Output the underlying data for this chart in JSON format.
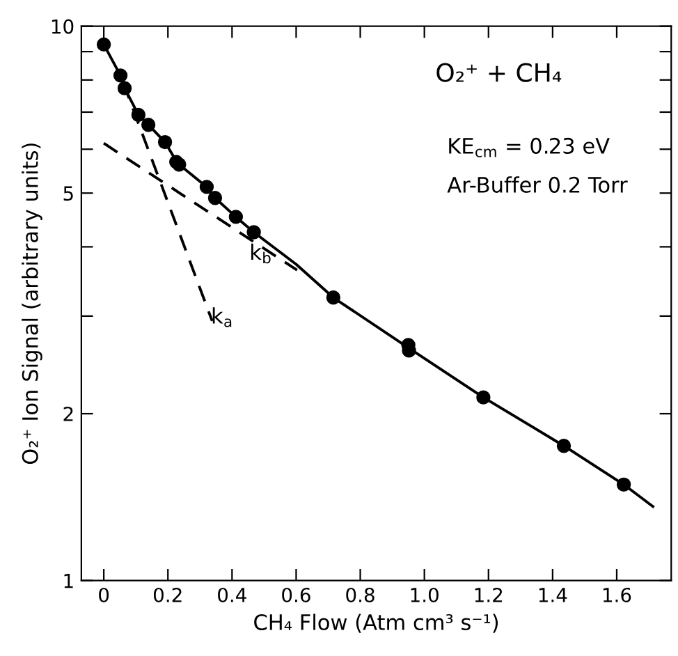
{
  "chart_data": {
    "type": "scatter",
    "xlabel": "CH₄ Flow (Atm cm³ s⁻¹)",
    "ylabel": "O₂⁺ Ion Signal (arbitrary units)",
    "log": "y",
    "grid": false,
    "legend": false,
    "xlim": [
      -0.07,
      1.77
    ],
    "ylim": [
      1,
      10
    ],
    "xticks": [
      0,
      0.2,
      0.4,
      0.6,
      0.8,
      {
        "value": 1.0,
        "label": "1.0"
      },
      1.2,
      1.4,
      1.6
    ],
    "yticks": [
      1,
      2,
      {
        "value": 3,
        "label": null
      },
      {
        "value": 4,
        "label": null
      },
      5,
      {
        "value": 6,
        "label": null
      },
      {
        "value": 7,
        "label": null
      },
      {
        "value": 8,
        "label": null
      },
      {
        "value": 9,
        "label": null
      },
      10
    ],
    "series": [
      {
        "color": "#000000",
        "marker": "circle",
        "x": [
          0,
          0.052,
          0.065,
          0.108,
          0.139,
          0.191,
          0.226,
          0.235,
          0.321,
          0.347,
          0.412,
          0.468,
          0.716,
          0.95,
          0.952,
          1.184,
          1.435,
          1.622
        ],
        "values": [
          9.27,
          8.15,
          7.73,
          6.92,
          6.64,
          6.18,
          5.69,
          5.63,
          5.13,
          4.9,
          4.53,
          4.25,
          3.24,
          2.66,
          2.6,
          2.14,
          1.75,
          1.49
        ]
      },
      {
        "type": "line",
        "color": "#000000",
        "marker": "none",
        "line_style": "solid",
        "x": [
          0,
          0.052,
          0.065,
          0.108,
          0.139,
          0.191,
          0.23,
          0.321,
          0.347,
          0.412,
          0.468,
          0.6,
          0.716,
          0.95,
          1.184,
          1.435,
          1.622,
          1.713
        ],
        "values": [
          9.27,
          8.15,
          7.73,
          6.92,
          6.64,
          6.18,
          5.66,
          5.13,
          4.9,
          4.53,
          4.25,
          3.72,
          3.24,
          2.63,
          2.14,
          1.75,
          1.49,
          1.36
        ]
      },
      {
        "type": "line",
        "color": "#000000",
        "marker": "none",
        "line_style": "dashed",
        "x": [
          0.061,
          0.338
        ],
        "values": [
          7.9,
          2.94
        ]
      },
      {
        "type": "line",
        "color": "#000000",
        "marker": "none",
        "line_style": "dashed",
        "x": [
          0,
          0.603
        ],
        "values": [
          6.15,
          3.63
        ]
      }
    ],
    "annotations": [
      {
        "text": "O₂⁺ + CH₄"
      },
      {
        "text": "KE$_{cm}$ = 0.23 eV"
      },
      {
        "text": "Ar-Buffer 0.2 Torr"
      },
      {
        "text": "k$_{b}$",
        "x": 0.43,
        "y": 4.22
      },
      {
        "text": "k$_{a}$",
        "x": 0.31,
        "y": 3.24
      }
    ]
  }
}
